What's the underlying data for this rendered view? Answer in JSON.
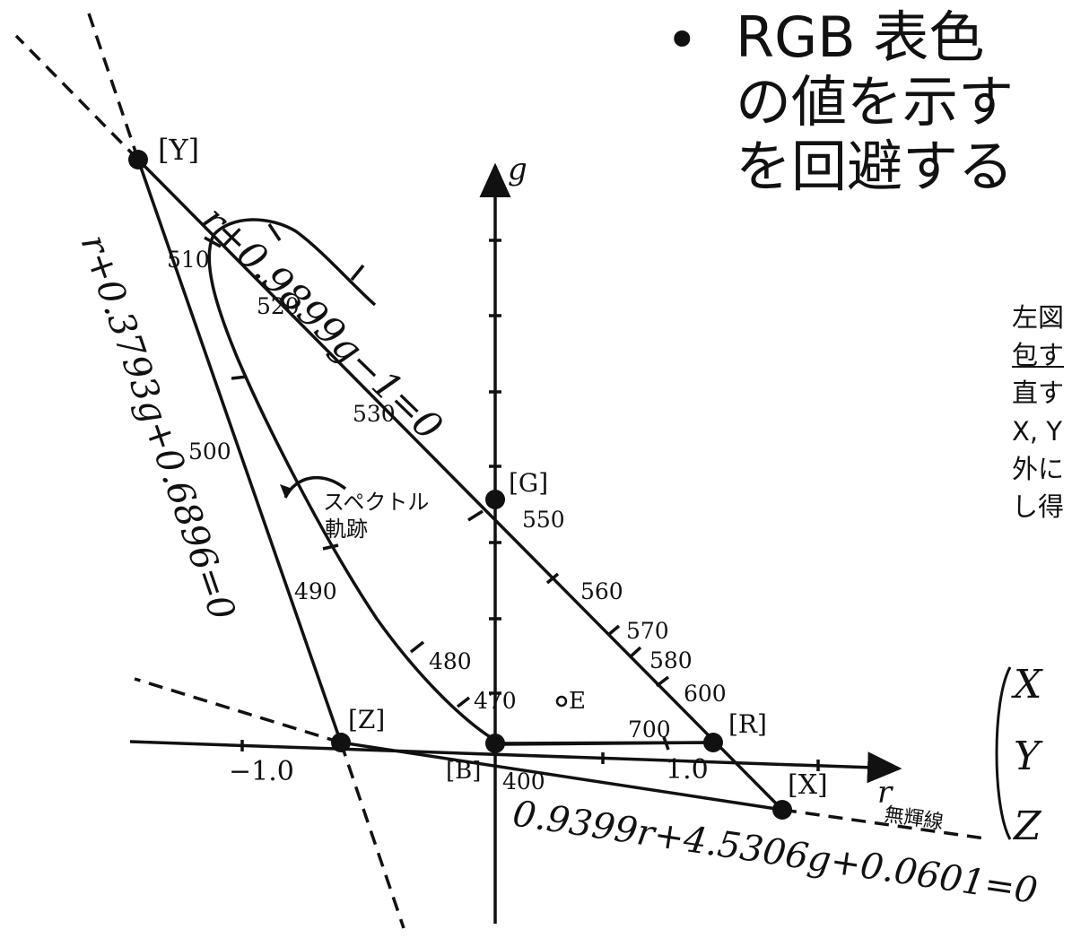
{
  "slide": {
    "bullet": "•",
    "heading_lines": [
      "RGB 表色",
      "の値を示す",
      "を回避する"
    ],
    "note_lines": [
      "左図",
      "包す",
      "直す",
      "X, Y",
      "外に",
      "し得"
    ],
    "matrix_letters": [
      "X",
      "Y",
      "Z"
    ]
  },
  "diagram": {
    "axis_g": "g",
    "axis_r": "r",
    "tick_minus1": "−1.0",
    "tick_1": "1.0",
    "points": {
      "Y": "[Y]",
      "G": "[G]",
      "Z": "[Z]",
      "B": "[B]",
      "R": "[R]",
      "X": "[X]",
      "E": "E"
    },
    "wavelengths": [
      "510",
      "520",
      "530",
      "500",
      "550",
      "560",
      "570",
      "580",
      "600",
      "490",
      "480",
      "470",
      "700",
      "400"
    ],
    "equations": {
      "yg": "r+0.9899g−1=0",
      "yz": "r+0.3793g+0.6896=0",
      "zx": "0.9399r+4.5306g+0.0601=0"
    },
    "labels": {
      "spectral_line1": "スペクトル",
      "spectral_line2": "軌跡",
      "alychne": "無輝線"
    },
    "background_color": "#ffffff",
    "ink_color": "#111111"
  }
}
